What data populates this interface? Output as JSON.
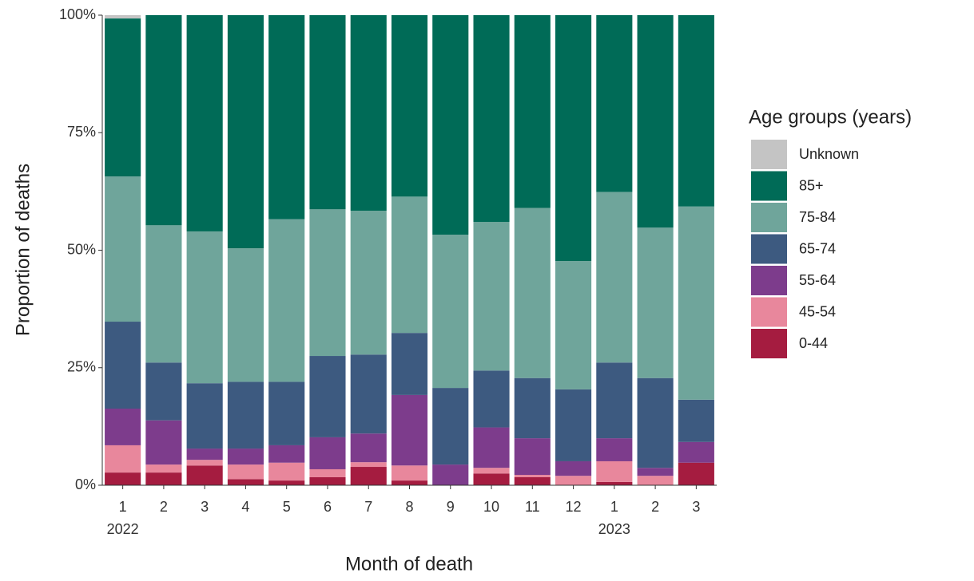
{
  "chart_data": {
    "type": "stacked_bar",
    "x_label": "Month of death",
    "y_label": "Proportion of deaths",
    "legend_title": "Age groups (years)",
    "categories": [
      "1",
      "2",
      "3",
      "4",
      "5",
      "6",
      "7",
      "8",
      "9",
      "10",
      "11",
      "12",
      "1",
      "2",
      "3"
    ],
    "year_labels": [
      "2022",
      null,
      null,
      null,
      null,
      null,
      null,
      null,
      null,
      null,
      null,
      null,
      "2023",
      null,
      null
    ],
    "ylim": [
      0,
      100
    ],
    "yticks": [
      {
        "value": 0,
        "label": "0%"
      },
      {
        "value": 25,
        "label": "25%"
      },
      {
        "value": 50,
        "label": "50%"
      },
      {
        "value": 75,
        "label": "75%"
      },
      {
        "value": 100,
        "label": "100%"
      }
    ],
    "series": [
      {
        "name": "0-44",
        "color": "#a51c40",
        "values": [
          2.7,
          2.7,
          4.2,
          1.3,
          1.0,
          1.7,
          3.9,
          1.0,
          0,
          2.5,
          1.7,
          0,
          0.7,
          0,
          4.8
        ]
      },
      {
        "name": "45-54",
        "color": "#e8879c",
        "values": [
          5.8,
          1.7,
          1.2,
          3.1,
          3.8,
          1.7,
          1.0,
          3.2,
          0,
          1.2,
          0.5,
          2.0,
          4.4,
          2.0,
          0
        ]
      },
      {
        "name": "55-64",
        "color": "#7d3c8c",
        "values": [
          7.8,
          9.4,
          2.4,
          3.4,
          3.7,
          6.8,
          6.1,
          15.0,
          4.4,
          8.6,
          7.8,
          3.1,
          4.9,
          1.7,
          4.4
        ]
      },
      {
        "name": "65-74",
        "color": "#3d5a80",
        "values": [
          18.5,
          12.3,
          13.9,
          14.2,
          13.5,
          17.3,
          16.8,
          13.2,
          16.3,
          12.1,
          12.8,
          15.3,
          16.1,
          19.1,
          9.0
        ]
      },
      {
        "name": "75-84",
        "color": "#6fa59b",
        "values": [
          30.9,
          29.2,
          32.3,
          28.4,
          34.6,
          31.2,
          30.6,
          29.0,
          32.6,
          31.6,
          36.2,
          27.3,
          36.3,
          32.0,
          41.1
        ]
      },
      {
        "name": "85+",
        "color": "#006b57",
        "values": [
          33.6,
          44.7,
          46.0,
          49.6,
          43.4,
          41.3,
          41.6,
          38.6,
          46.7,
          44.0,
          41.0,
          52.3,
          37.6,
          45.2,
          40.7
        ]
      },
      {
        "name": "Unknown",
        "color": "#c4c4c4",
        "values": [
          0.7,
          0,
          0,
          0,
          0,
          0,
          0,
          0,
          0,
          0,
          0,
          0,
          0,
          0,
          0
        ]
      }
    ]
  }
}
